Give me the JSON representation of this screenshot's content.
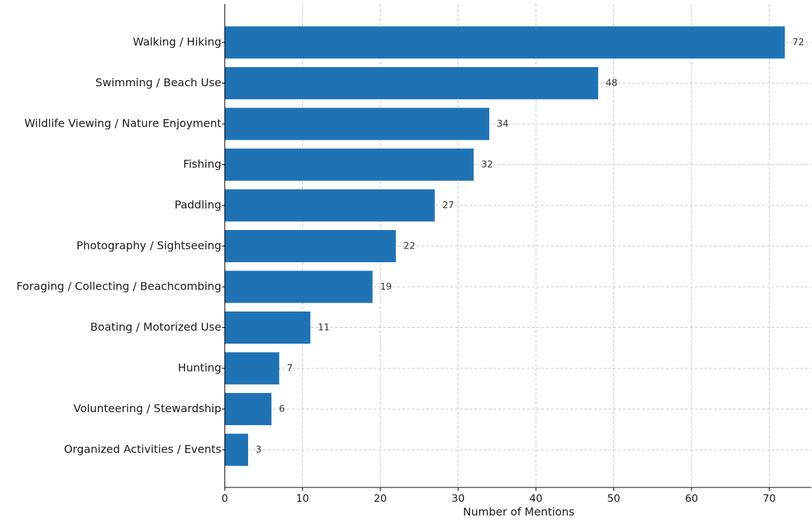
{
  "chart_data": {
    "type": "bar",
    "orientation": "horizontal",
    "categories": [
      "Walking / Hiking",
      "Swimming / Beach Use",
      "Wildlife Viewing / Nature Enjoyment",
      "Fishing",
      "Paddling",
      "Photography / Sightseeing",
      "Foraging / Collecting / Beachcombing",
      "Boating / Motorized Use",
      "Hunting",
      "Volunteering / Stewardship",
      "Organized Activities / Events"
    ],
    "values": [
      72,
      48,
      34,
      32,
      27,
      22,
      19,
      11,
      7,
      6,
      3
    ],
    "data_labels": [
      "72",
      "48",
      "34",
      "32",
      "27",
      "22",
      "19",
      "11",
      "7",
      "6",
      "3"
    ],
    "xlabel": "Number of Mentions",
    "ylabel": "",
    "xlim": [
      0,
      75.4
    ],
    "xticks": [
      0,
      10,
      20,
      30,
      40,
      50,
      60,
      70
    ],
    "xtick_labels": [
      "0",
      "10",
      "20",
      "30",
      "40",
      "50",
      "60",
      "70"
    ],
    "grid": true,
    "bar_color": "#1f73b5"
  }
}
